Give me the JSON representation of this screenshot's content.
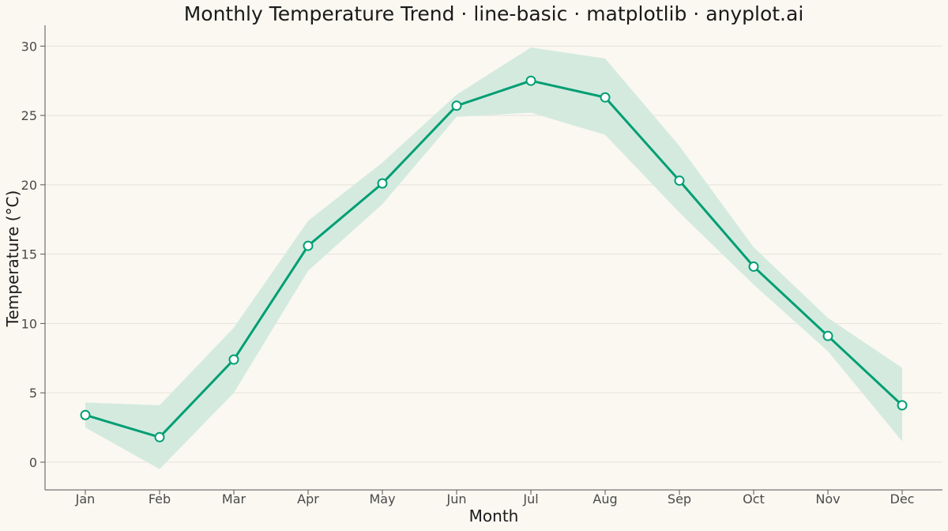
{
  "chart_data": {
    "type": "line",
    "title": "Monthly Temperature Trend · line-basic · matplotlib · anyplot.ai",
    "xlabel": "Month",
    "ylabel": "Temperature (°C)",
    "categories": [
      "Jan",
      "Feb",
      "Mar",
      "Apr",
      "May",
      "Jun",
      "Jul",
      "Aug",
      "Sep",
      "Oct",
      "Nov",
      "Dec"
    ],
    "series": [
      {
        "values": [
          3.4,
          1.8,
          7.4,
          15.6,
          20.1,
          25.7,
          27.5,
          26.3,
          20.3,
          14.1,
          9.1,
          4.1
        ],
        "band_upper": [
          4.3,
          4.1,
          9.7,
          17.4,
          21.6,
          26.5,
          29.9,
          29.1,
          22.8,
          15.5,
          10.4,
          6.8
        ],
        "band_lower": [
          2.5,
          -0.5,
          5.0,
          13.8,
          18.6,
          24.9,
          25.2,
          23.6,
          18.0,
          12.8,
          8.0,
          1.5
        ]
      }
    ],
    "ylim": [
      -2,
      31.5
    ],
    "yticks": [
      0,
      5,
      10,
      15,
      20,
      25,
      30
    ],
    "grid": "horizontal",
    "legend": "none",
    "colors": {
      "line": "#009E73",
      "band": "#D4EADF",
      "marker_fill": "#FFFFFF",
      "grid": "#E6E2D8",
      "axis": "#555555",
      "background": "#FAF8F1"
    }
  }
}
